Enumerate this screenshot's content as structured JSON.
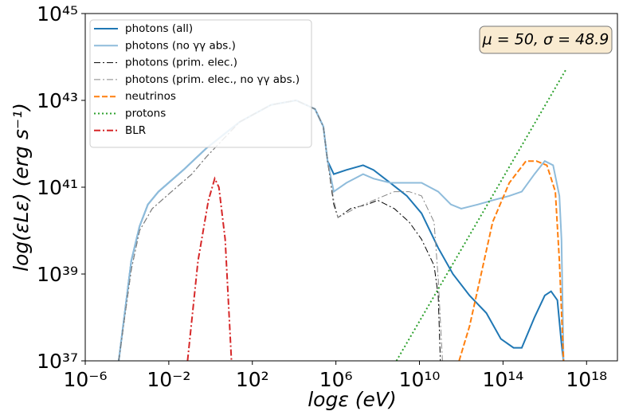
{
  "chart_data": {
    "type": "line",
    "xlabel": "logε (eV)",
    "ylabel": "log(εLε) (erg s⁻¹)",
    "annotation": "μ = 50, σ = 48.9",
    "xscale": "log",
    "yscale": "log",
    "legend": "upper left",
    "xlim": [
      1e-06,
      3e+19
    ],
    "ylim": [
      1e+37,
      1e+45
    ],
    "xticks": [
      {
        "value": 1e-06,
        "label": "10⁻⁶"
      },
      {
        "value": 0.01,
        "label": "10⁻²"
      },
      {
        "value": 100.0,
        "label": "10²"
      },
      {
        "value": 1000000.0,
        "label": "10⁶"
      },
      {
        "value": 10000000000.0,
        "label": "10¹⁰"
      },
      {
        "value": 100000000000000.0,
        "label": "10¹⁴"
      },
      {
        "value": 1e+18,
        "label": "10¹⁸"
      }
    ],
    "yticks": [
      {
        "value": 1e+37,
        "label": "10³⁷"
      },
      {
        "value": 1e+39,
        "label": "10³⁹"
      },
      {
        "value": 1e+41,
        "label": "10⁴¹"
      },
      {
        "value": 1e+43,
        "label": "10⁴³"
      },
      {
        "value": 1e+45,
        "label": "10⁴⁵"
      }
    ],
    "series": [
      {
        "name": "photons (all)",
        "color": "#1f77b4",
        "style": "solid",
        "width": 2,
        "x": [
          4e-05,
          0.00016,
          0.0004,
          0.001,
          0.0032,
          0.05,
          0.63,
          25,
          790,
          12600.0,
          100000.0,
          250000.0,
          400000.0,
          790000.0,
          3200000.0,
          20000000.0,
          63000000.0,
          400000000.0,
          2500000000.0,
          12600000000.0,
          79000000000.0,
          400000000000.0,
          2500000000000.0,
          16000000000000.0,
          79000000000000.0,
          320000000000000.0,
          790000000000000.0,
          3200000000000000.0,
          1e+16,
          2e+16,
          4e+16,
          6.3e+16,
          7.9e+16
        ],
        "values": [
          1e+37,
          2e+39,
          1.26e+40,
          4e+40,
          7.9e+40,
          2.5e+41,
          7.9e+41,
          3.2e+42,
          7.9e+42,
          1e+43,
          6.3e+42,
          2.5e+42,
          4e+41,
          2e+41,
          2.5e+41,
          3.2e+41,
          2.5e+41,
          1.26e+41,
          6.3e+40,
          2.5e+40,
          4e+39,
          1e+39,
          3.2e+38,
          1.26e+38,
          3.2e+37,
          2e+37,
          2e+37,
          1e+38,
          3.2e+38,
          4e+38,
          2.5e+38,
          2.5e+37,
          1e+37
        ]
      },
      {
        "name": "photons (no γγ abs.)",
        "color": "#8fbcdb",
        "style": "solid",
        "width": 2,
        "x": [
          4e-05,
          0.00016,
          0.0004,
          0.001,
          0.0032,
          0.05,
          0.63,
          25,
          790,
          12600.0,
          100000.0,
          250000.0,
          400000.0,
          790000.0,
          3200000.0,
          20000000.0,
          63000000.0,
          400000000.0,
          2500000000.0,
          12600000000.0,
          79000000000.0,
          320000000000.0,
          1000000000000.0,
          6300000000000.0,
          32000000000000.0,
          200000000000000.0,
          790000000000000.0,
          3200000000000000.0,
          1e+16,
          2.5e+16,
          5e+16,
          6.3e+16,
          7.9e+16
        ],
        "values": [
          1e+37,
          2e+39,
          1.26e+40,
          4e+40,
          7.9e+40,
          2.5e+41,
          7.9e+41,
          3.2e+42,
          7.9e+42,
          1e+43,
          6.3e+42,
          2.5e+42,
          4e+41,
          7.9e+40,
          1.26e+41,
          2e+41,
          1.58e+41,
          1.26e+41,
          1.26e+41,
          1.26e+41,
          7.9e+40,
          4e+40,
          3.2e+40,
          4e+40,
          5e+40,
          6.3e+40,
          7.9e+40,
          2e+41,
          4e+41,
          3.2e+41,
          6.3e+40,
          6.3e+39,
          1e+37
        ]
      },
      {
        "name": "photons (prim. elec.)",
        "color": "#000000",
        "style": "dashdot",
        "width": 1,
        "x": [
          4e-05,
          0.00016,
          0.0004,
          0.0016,
          0.0079,
          0.126,
          0.63,
          25,
          790,
          12600.0,
          100000.0,
          250000.0,
          400000.0,
          790000.0,
          1260000.0,
          5000000.0,
          32000000.0,
          100000000.0,
          630000000.0,
          3200000000.0,
          12600000000.0,
          50000000000.0,
          79000000000.0,
          100000000000.0
        ],
        "values": [
          1e+37,
          1.26e+39,
          1e+40,
          3.2e+40,
          6.3e+40,
          2e+41,
          5e+41,
          3.2e+42,
          7.9e+42,
          1e+43,
          6.3e+42,
          2.5e+42,
          4e+41,
          4e+40,
          2e+40,
          3.2e+40,
          4e+40,
          5e+40,
          3.2e+40,
          1.58e+40,
          6.3e+39,
          1.58e+39,
          3.2e+38,
          1e+37
        ]
      },
      {
        "name": "photons (prim. elec., no γγ abs.)",
        "color": "#888888",
        "style": "dashdot",
        "width": 1,
        "x": [
          4e-05,
          0.00016,
          0.0004,
          0.0016,
          0.0079,
          0.126,
          0.63,
          25,
          790,
          12600.0,
          100000.0,
          250000.0,
          400000.0,
          790000.0,
          1260000.0,
          7900000.0,
          63000000.0,
          630000000.0,
          3200000000.0,
          12600000000.0,
          50000000000.0,
          79000000000.0,
          126000000000.0
        ],
        "values": [
          1e+37,
          1.26e+39,
          1e+40,
          3.2e+40,
          6.3e+40,
          2e+41,
          5e+41,
          3.2e+42,
          7.9e+42,
          1e+43,
          6.3e+42,
          2.5e+42,
          4e+41,
          5e+40,
          2e+40,
          3.2e+40,
          5e+40,
          7.9e+40,
          7.9e+40,
          6.3e+40,
          1.58e+40,
          7.9e+38,
          1e+37
        ]
      },
      {
        "name": "neutrinos",
        "color": "#ff7f0e",
        "style": "dashed",
        "width": 2,
        "x": [
          790000000000.0,
          2500000000000.0,
          10000000000000.0,
          32000000000000.0,
          200000000000000.0,
          1260000000000000.0,
          4000000000000000.0,
          1.26e+16,
          3.2e+16,
          5e+16,
          7.9e+16
        ],
        "values": [
          1e+37,
          6.3e+37,
          1.26e+39,
          1.58e+40,
          1.26e+41,
          4e+41,
          4e+41,
          3.2e+41,
          7.9e+40,
          2e+39,
          1e+37
        ]
      },
      {
        "name": "protons",
        "color": "#2ca02c",
        "style": "dotted",
        "width": 2,
        "x": [
          790000000.0,
          1e+17
        ],
        "values": [
          1e+37,
          5e+43
        ]
      },
      {
        "name": "BLR",
        "color": "#d62728",
        "style": "dashdot",
        "width": 2,
        "x": [
          0.079,
          0.25,
          0.79,
          1.58,
          2.5,
          5,
          10
        ],
        "values": [
          1e+37,
          2e+39,
          5e+40,
          1.58e+41,
          1e+41,
          6.3e+39,
          1e+37
        ]
      }
    ]
  }
}
